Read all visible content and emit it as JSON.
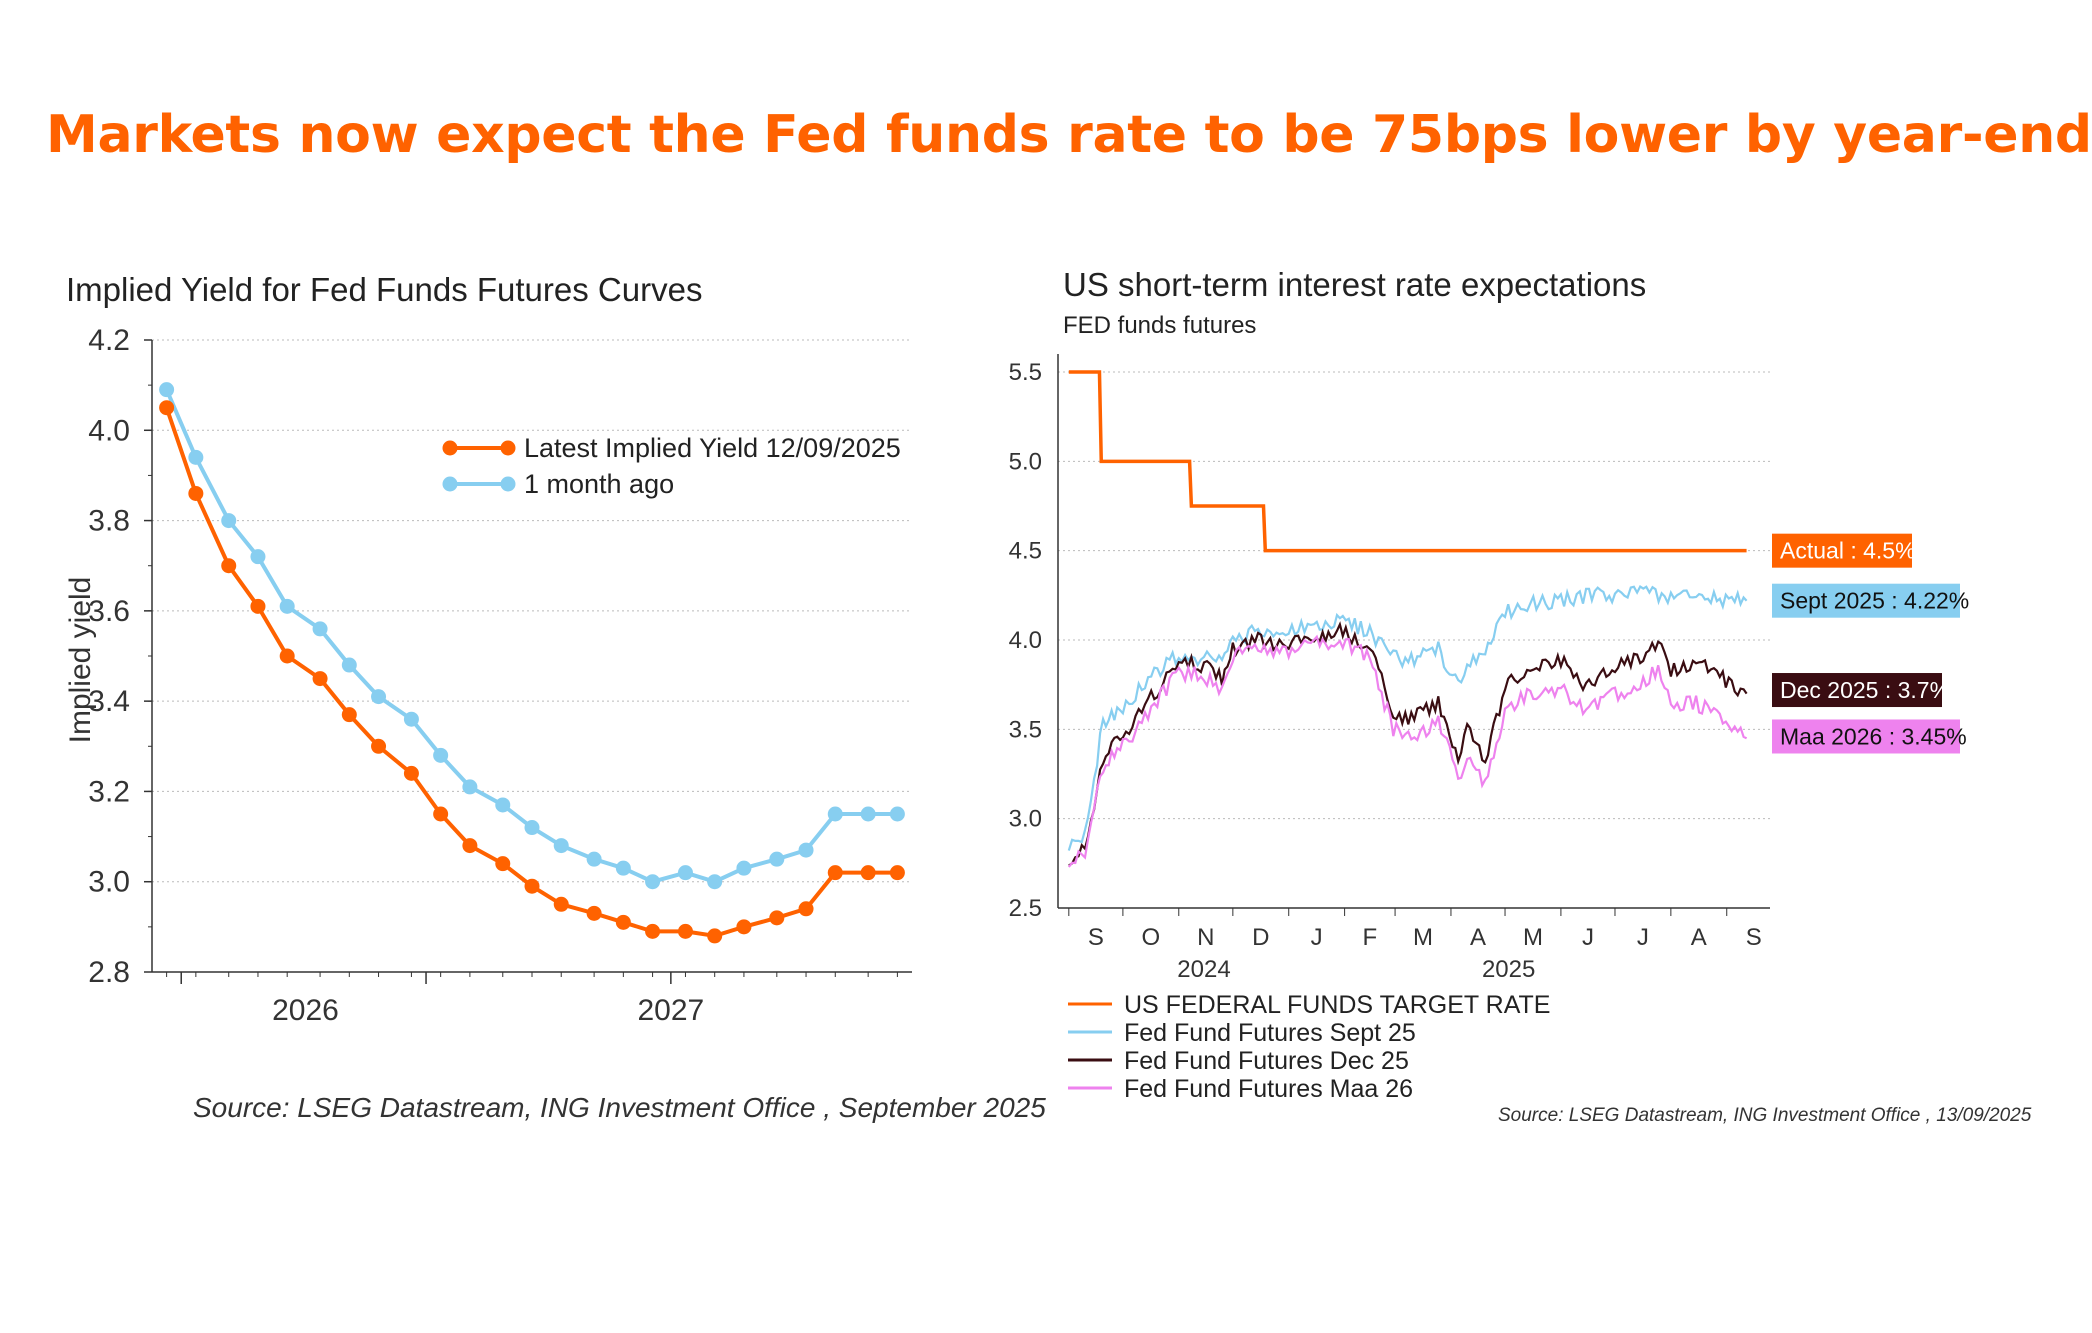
{
  "headline": "Markets now expect the Fed funds rate to be 75bps lower by year-end",
  "colors": {
    "headline": "#ff6200",
    "orange": "#ff6200",
    "light_blue": "#87cef0",
    "dark_maroon": "#3a0d12",
    "pink": "#ee82ee"
  },
  "chart_data": [
    {
      "type": "line",
      "title": "Implied Yield for Fed Funds Futures Curves",
      "ylabel": "Implied yield",
      "xlabel": "",
      "ylim": [
        2.8,
        4.2
      ],
      "yticks": [
        "4.2",
        "4.0",
        "3.8",
        "3.6",
        "3.4",
        "3.2",
        "3.0",
        "2.8"
      ],
      "xtick_labels": [
        "2026",
        "2027"
      ],
      "x": [
        2025.79,
        2025.87,
        2025.96,
        2026.04,
        2026.12,
        2026.21,
        2026.29,
        2026.37,
        2026.46,
        2026.54,
        2026.62,
        2026.71,
        2026.79,
        2026.87,
        2026.96,
        2027.04,
        2027.12,
        2027.21,
        2027.29,
        2027.37,
        2027.46,
        2027.54,
        2027.62,
        2027.71,
        2027.79
      ],
      "legend_position": "top-right",
      "series": [
        {
          "name": "Latest Implied Yield 12/09/2025",
          "color": "#ff6200",
          "values": [
            4.05,
            3.86,
            3.7,
            3.61,
            3.5,
            3.45,
            3.37,
            3.3,
            3.24,
            3.15,
            3.08,
            3.04,
            2.99,
            2.95,
            2.93,
            2.91,
            2.89,
            2.89,
            2.88,
            2.9,
            2.92,
            2.94,
            3.02,
            3.02,
            3.02
          ]
        },
        {
          "name": "1 month ago",
          "color": "#87cef0",
          "values": [
            4.09,
            3.94,
            3.8,
            3.72,
            3.61,
            3.56,
            3.48,
            3.41,
            3.36,
            3.28,
            3.21,
            3.17,
            3.12,
            3.08,
            3.05,
            3.03,
            3.0,
            3.02,
            3.0,
            3.03,
            3.05,
            3.07,
            3.15,
            3.15,
            3.15
          ]
        }
      ]
    },
    {
      "type": "line",
      "title": "US short-term interest rate expectations",
      "subtitle": "FED funds futures",
      "xlabel": "",
      "ylabel": "",
      "ylim": [
        2.5,
        5.5
      ],
      "yticks": [
        "5.5",
        "5.0",
        "4.5",
        "4.0",
        "3.5",
        "3.0",
        "2.5"
      ],
      "month_labels": [
        "S",
        "O",
        "N",
        "D",
        "J",
        "F",
        "M",
        "A",
        "M",
        "J",
        "J",
        "A",
        "S"
      ],
      "year_labels": [
        "2024",
        "2025"
      ],
      "legend_position": "bottom",
      "series": [
        {
          "name": "US FEDERAL FUNDS TARGET RATE",
          "color": "#ff6200",
          "points": [
            [
              "2024-09-01",
              5.5
            ],
            [
              "2024-09-18",
              5.5
            ],
            [
              "2024-09-19",
              5.0
            ],
            [
              "2024-11-07",
              5.0
            ],
            [
              "2024-11-08",
              4.75
            ],
            [
              "2024-12-18",
              4.75
            ],
            [
              "2024-12-19",
              4.5
            ],
            [
              "2025-09-12",
              4.5
            ]
          ],
          "end_label": "Actual : 4.5%"
        },
        {
          "name": "Fed Fund Futures Sept 25",
          "color": "#87cef0",
          "points": [
            [
              "2024-09-01",
              2.85
            ],
            [
              "2024-09-10",
              2.9
            ],
            [
              "2024-09-20",
              3.55
            ],
            [
              "2024-10-01",
              3.6
            ],
            [
              "2024-10-15",
              3.78
            ],
            [
              "2024-11-01",
              3.92
            ],
            [
              "2024-11-15",
              3.9
            ],
            [
              "2024-11-25",
              3.88
            ],
            [
              "2024-12-01",
              4.0
            ],
            [
              "2024-12-15",
              4.05
            ],
            [
              "2025-01-01",
              4.05
            ],
            [
              "2025-01-15",
              4.08
            ],
            [
              "2025-01-31",
              4.1
            ],
            [
              "2025-02-15",
              4.05
            ],
            [
              "2025-02-28",
              3.9
            ],
            [
              "2025-03-10",
              3.88
            ],
            [
              "2025-03-25",
              3.95
            ],
            [
              "2025-04-05",
              3.75
            ],
            [
              "2025-04-10",
              3.85
            ],
            [
              "2025-04-20",
              3.95
            ],
            [
              "2025-05-01",
              4.15
            ],
            [
              "2025-05-15",
              4.2
            ],
            [
              "2025-06-01",
              4.22
            ],
            [
              "2025-06-15",
              4.25
            ],
            [
              "2025-07-01",
              4.25
            ],
            [
              "2025-07-15",
              4.27
            ],
            [
              "2025-08-01",
              4.25
            ],
            [
              "2025-08-15",
              4.24
            ],
            [
              "2025-09-12",
              4.22
            ]
          ],
          "end_label": "Sept 2025 : 4.22%"
        },
        {
          "name": "Fed Fund Futures Dec 25",
          "color": "#3a0d12",
          "points": [
            [
              "2024-09-01",
              2.78
            ],
            [
              "2024-09-10",
              2.82
            ],
            [
              "2024-09-20",
              3.35
            ],
            [
              "2024-10-01",
              3.45
            ],
            [
              "2024-10-15",
              3.65
            ],
            [
              "2024-11-01",
              3.88
            ],
            [
              "2024-11-15",
              3.85
            ],
            [
              "2024-11-25",
              3.78
            ],
            [
              "2024-12-01",
              3.95
            ],
            [
              "2024-12-15",
              4.0
            ],
            [
              "2025-01-01",
              3.97
            ],
            [
              "2025-01-15",
              4.02
            ],
            [
              "2025-01-31",
              4.05
            ],
            [
              "2025-02-15",
              3.95
            ],
            [
              "2025-02-28",
              3.6
            ],
            [
              "2025-03-10",
              3.55
            ],
            [
              "2025-03-25",
              3.65
            ],
            [
              "2025-04-05",
              3.35
            ],
            [
              "2025-04-10",
              3.5
            ],
            [
              "2025-04-20",
              3.3
            ],
            [
              "2025-05-01",
              3.75
            ],
            [
              "2025-05-15",
              3.85
            ],
            [
              "2025-06-01",
              3.88
            ],
            [
              "2025-06-15",
              3.75
            ],
            [
              "2025-07-01",
              3.85
            ],
            [
              "2025-07-15",
              3.9
            ],
            [
              "2025-07-25",
              4.0
            ],
            [
              "2025-08-01",
              3.82
            ],
            [
              "2025-08-15",
              3.88
            ],
            [
              "2025-09-12",
              3.7
            ]
          ],
          "end_label": "Dec 2025 : 3.7%"
        },
        {
          "name": "Fed Fund Futures Maa 26",
          "color": "#ee82ee",
          "points": [
            [
              "2024-09-01",
              2.75
            ],
            [
              "2024-09-10",
              2.8
            ],
            [
              "2024-09-20",
              3.3
            ],
            [
              "2024-10-01",
              3.4
            ],
            [
              "2024-10-15",
              3.6
            ],
            [
              "2024-11-01",
              3.82
            ],
            [
              "2024-11-15",
              3.8
            ],
            [
              "2024-11-25",
              3.72
            ],
            [
              "2024-12-01",
              3.92
            ],
            [
              "2024-12-15",
              3.95
            ],
            [
              "2025-01-01",
              3.93
            ],
            [
              "2025-01-15",
              3.98
            ],
            [
              "2025-01-31",
              4.0
            ],
            [
              "2025-02-15",
              3.9
            ],
            [
              "2025-02-28",
              3.5
            ],
            [
              "2025-03-10",
              3.45
            ],
            [
              "2025-03-25",
              3.55
            ],
            [
              "2025-04-05",
              3.22
            ],
            [
              "2025-04-10",
              3.35
            ],
            [
              "2025-04-20",
              3.2
            ],
            [
              "2025-05-01",
              3.6
            ],
            [
              "2025-05-15",
              3.7
            ],
            [
              "2025-06-01",
              3.72
            ],
            [
              "2025-06-15",
              3.6
            ],
            [
              "2025-07-01",
              3.7
            ],
            [
              "2025-07-15",
              3.75
            ],
            [
              "2025-07-25",
              3.85
            ],
            [
              "2025-08-01",
              3.62
            ],
            [
              "2025-08-15",
              3.65
            ],
            [
              "2025-09-12",
              3.45
            ]
          ],
          "end_label": "Maa 2026 : 3.45%"
        }
      ]
    }
  ],
  "sources": {
    "left": "Source: LSEG Datastream, ING Investment Office , September 2025",
    "right": "Source: LSEG Datastream, ING Investment Office , 13/09/2025"
  }
}
